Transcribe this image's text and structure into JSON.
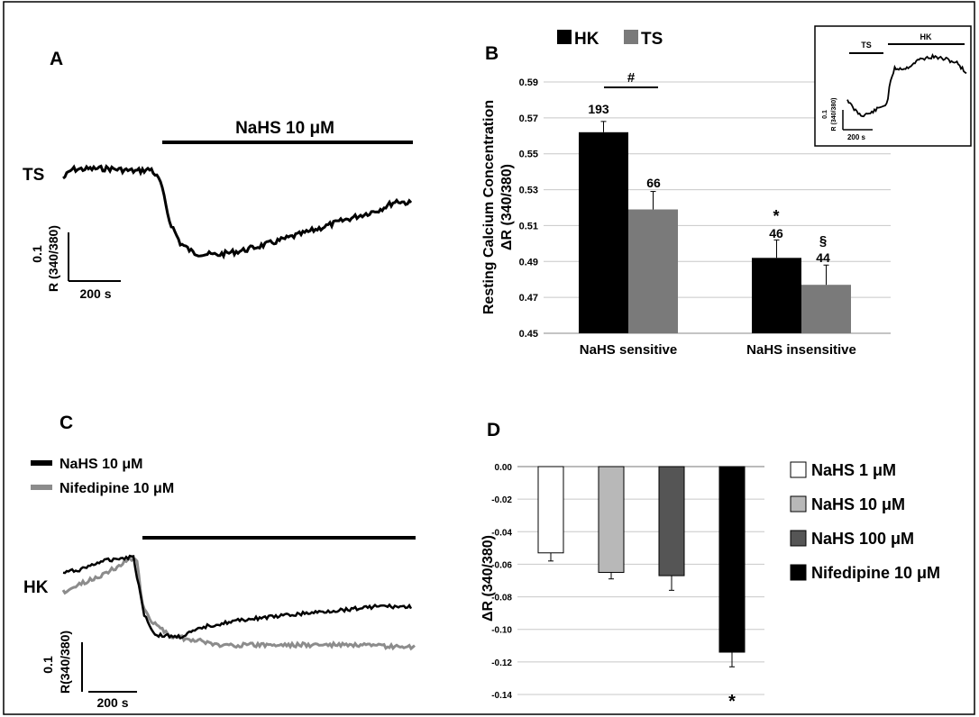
{
  "panel_a": {
    "letter": "A",
    "trace_label": "TS",
    "treatment": "NaHS 10 μM",
    "scale_y": [
      "0.1",
      "R (340/380)"
    ],
    "scale_x": "200 s"
  },
  "panel_b": {
    "letter": "B",
    "legend": [
      "HK",
      "TS"
    ],
    "significance": [
      "#",
      "*",
      "§"
    ],
    "counts": [
      "193",
      "66",
      "46",
      "44"
    ],
    "inset": {
      "labels": [
        "TS",
        "HK"
      ],
      "scale_y": [
        "0.1",
        "R (340/380)"
      ],
      "scale_x": "200 s"
    }
  },
  "panel_c": {
    "letter": "C",
    "trace_label": "HK",
    "legend": [
      "NaHS 10 μM",
      "Nifedipine 10 μM"
    ],
    "scale_y": [
      "0.1",
      "R(340/380)"
    ],
    "scale_x": "200 s"
  },
  "panel_d": {
    "letter": "D",
    "significance": "*",
    "legend": [
      "NaHS 1 μM",
      "NaHS 10 μM",
      "NaHS 100 μM",
      "Nifedipine 10 μM"
    ]
  },
  "colors": {
    "hk": "#000000",
    "ts": "#7a7a7a",
    "nahs_1": "#ffffff",
    "nahs_10": "#b8b8b8",
    "nahs_100": "#555555",
    "nifedipine": "#000000"
  },
  "chart_data": [
    {
      "type": "bar",
      "panel": "B",
      "categories": [
        "NaHS sensitive",
        "NaHS insensitive"
      ],
      "series": [
        {
          "name": "HK",
          "values": [
            0.562,
            0.492
          ],
          "errors": [
            0.006,
            0.01
          ],
          "n": [
            193,
            46
          ]
        },
        {
          "name": "TS",
          "values": [
            0.519,
            0.477
          ],
          "errors": [
            0.01,
            0.011
          ],
          "n": [
            66,
            44
          ]
        }
      ],
      "ylabel": "Resting Calcium Concentration ΔR (340/380)",
      "ylim": [
        0.45,
        0.59
      ],
      "yticks": [
        "0.45",
        "0.47",
        "0.49",
        "0.51",
        "0.53",
        "0.55",
        "0.57",
        "0.59"
      ],
      "grid": true,
      "legend_position": "top-left"
    },
    {
      "type": "bar",
      "panel": "D",
      "categories": [
        "NaHS 1 μM",
        "NaHS 10 μM",
        "NaHS 100 μM",
        "Nifedipine 10 μM"
      ],
      "values": [
        -0.053,
        -0.065,
        -0.067,
        -0.114
      ],
      "errors": [
        0.005,
        0.004,
        0.009,
        0.009
      ],
      "ylabel": "ΔR (340/380)",
      "ylim": [
        -0.14,
        0.0
      ],
      "yticks": [
        "0.00",
        "-0.02",
        "-0.04",
        "-0.06",
        "-0.08",
        "-0.10",
        "-0.12",
        "-0.14"
      ],
      "grid": true,
      "legend_position": "right"
    }
  ]
}
